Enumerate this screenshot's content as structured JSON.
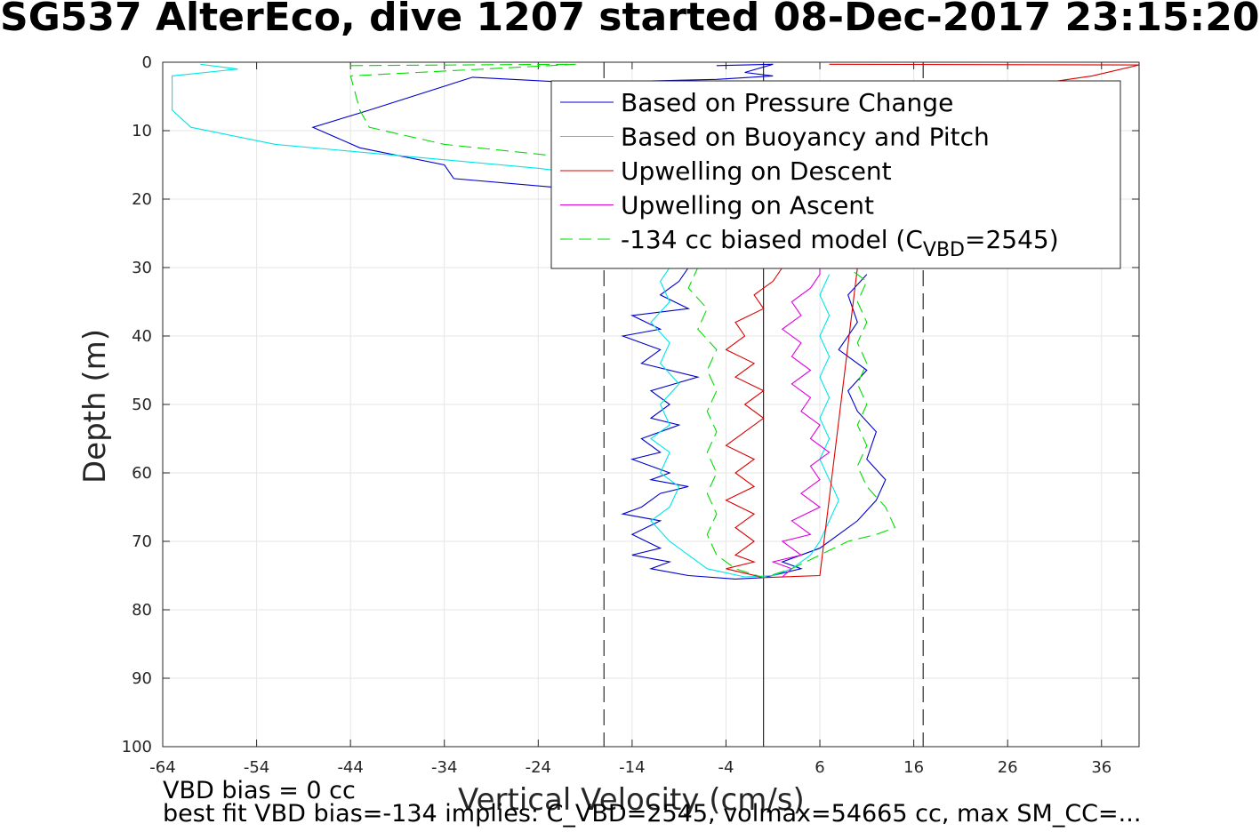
{
  "title": "SG537 AlterEco, dive 1207 started 08-Dec-2017 23:15:20",
  "notes": {
    "vbd_bias": "VBD bias = 0 cc",
    "best_fit": "best fit VBD bias=-134 implies: C_VBD=2545, volmax=54665 cc, max SM_CC=..."
  },
  "chart_data": {
    "type": "line",
    "xlabel": "Vertical Velocity (cm/s)",
    "ylabel": "Depth (m)",
    "xlim": [
      -64,
      40
    ],
    "ylim": [
      0,
      100
    ],
    "y_reversed": true,
    "grid": true,
    "xticks": [
      -64,
      -54,
      -44,
      -34,
      -24,
      -14,
      -4,
      6,
      16,
      26,
      36
    ],
    "yticks": [
      0,
      10,
      20,
      30,
      40,
      50,
      60,
      70,
      80,
      90,
      100
    ],
    "legend_position": "top-right",
    "vlines": [
      {
        "x": 0,
        "style": "solid"
      },
      {
        "x": -17,
        "style": "dashed"
      },
      {
        "x": 17,
        "style": "dashed"
      }
    ],
    "series": [
      {
        "name": "Based on Pressure Change",
        "color": "#0000cc",
        "style": "solid",
        "points": [
          [
            -5,
            0.5
          ],
          [
            1,
            0.3
          ],
          [
            -2,
            1.5
          ],
          [
            1,
            2
          ],
          [
            -5,
            2.5
          ],
          [
            -20,
            3
          ],
          [
            -31,
            2.2
          ],
          [
            -42,
            7
          ],
          [
            -48,
            9.5
          ],
          [
            -43,
            12.5
          ],
          [
            -34,
            15
          ],
          [
            -33,
            17
          ],
          [
            -22,
            18.3
          ],
          [
            -16,
            19.5
          ],
          [
            -11,
            21
          ],
          [
            -9,
            25
          ],
          [
            -8,
            30
          ],
          [
            -9,
            32
          ],
          [
            -11,
            34
          ],
          [
            -8,
            36
          ],
          [
            -14,
            37
          ],
          [
            -11,
            39
          ],
          [
            -15,
            40
          ],
          [
            -11,
            42
          ],
          [
            -13,
            44
          ],
          [
            -7,
            46
          ],
          [
            -12,
            48
          ],
          [
            -10,
            50
          ],
          [
            -12,
            52
          ],
          [
            -9,
            53
          ],
          [
            -13,
            55
          ],
          [
            -11,
            57
          ],
          [
            -14,
            58
          ],
          [
            -10,
            60
          ],
          [
            -12,
            61
          ],
          [
            -8,
            62
          ],
          [
            -11,
            63
          ],
          [
            -13,
            65
          ],
          [
            -15,
            66
          ],
          [
            -11,
            67
          ],
          [
            -14,
            69
          ],
          [
            -11,
            71
          ],
          [
            -14,
            72
          ],
          [
            -10,
            73
          ],
          [
            -12,
            74
          ],
          [
            -8,
            75
          ],
          [
            -3,
            75.5
          ],
          [
            0,
            75.3
          ],
          [
            4,
            74
          ],
          [
            2,
            73
          ],
          [
            6,
            71
          ],
          [
            8,
            69
          ],
          [
            10,
            67
          ],
          [
            12,
            64
          ],
          [
            13,
            61
          ],
          [
            11,
            58
          ],
          [
            12,
            54
          ],
          [
            10,
            51
          ],
          [
            9,
            48
          ],
          [
            11,
            45
          ],
          [
            8,
            42
          ],
          [
            10,
            38
          ],
          [
            9,
            34
          ],
          [
            11,
            31
          ]
        ]
      },
      {
        "name": "Based on Buoyancy and Pitch",
        "color": "#00e5e5",
        "style": "solid",
        "points": [
          [
            -60,
            0.3
          ],
          [
            -56,
            1
          ],
          [
            -63,
            2
          ],
          [
            -63,
            7
          ],
          [
            -61,
            9.5
          ],
          [
            -52,
            12
          ],
          [
            -36,
            14
          ],
          [
            -24,
            15.5
          ],
          [
            -15,
            17
          ],
          [
            -10,
            20
          ],
          [
            -9,
            25
          ],
          [
            -10,
            30
          ],
          [
            -11,
            32
          ],
          [
            -10,
            35
          ],
          [
            -12,
            38
          ],
          [
            -10,
            41
          ],
          [
            -11,
            44
          ],
          [
            -9,
            47
          ],
          [
            -11,
            50
          ],
          [
            -10,
            53
          ],
          [
            -12,
            55
          ],
          [
            -10,
            57
          ],
          [
            -11,
            60
          ],
          [
            -9,
            62
          ],
          [
            -10,
            65
          ],
          [
            -12,
            67
          ],
          [
            -10,
            70
          ],
          [
            -8,
            72
          ],
          [
            -6,
            74
          ],
          [
            -2,
            75.2
          ],
          [
            1,
            75
          ],
          [
            3,
            74
          ],
          [
            5,
            72
          ],
          [
            6,
            70
          ],
          [
            7,
            67
          ],
          [
            8,
            64
          ],
          [
            7,
            61
          ],
          [
            6,
            58
          ],
          [
            7,
            55
          ],
          [
            6,
            52
          ],
          [
            7,
            49
          ],
          [
            6,
            46
          ],
          [
            7,
            43
          ],
          [
            6,
            40
          ],
          [
            7,
            37
          ],
          [
            6,
            34
          ],
          [
            7,
            31
          ]
        ]
      },
      {
        "name": "Upwelling on Descent",
        "color": "#dd0000",
        "style": "solid",
        "points": [
          [
            7,
            0.3
          ],
          [
            40,
            0.4
          ],
          [
            35,
            2
          ],
          [
            30,
            3
          ],
          [
            20,
            4
          ],
          [
            12,
            5
          ],
          [
            8,
            5.5
          ],
          [
            10,
            30
          ],
          [
            6,
            75
          ],
          [
            0,
            75.3
          ],
          [
            -4,
            74
          ],
          [
            -1,
            73
          ],
          [
            -3,
            72
          ],
          [
            -1,
            70
          ],
          [
            -3,
            68
          ],
          [
            -1,
            66
          ],
          [
            -4,
            64
          ],
          [
            -1,
            62
          ],
          [
            -3,
            60
          ],
          [
            -1,
            58
          ],
          [
            -4,
            56
          ],
          [
            -2,
            54
          ],
          [
            0,
            52
          ],
          [
            -2,
            50
          ],
          [
            0,
            48
          ],
          [
            -3,
            46
          ],
          [
            -1,
            44
          ],
          [
            -4,
            42
          ],
          [
            -2,
            40
          ],
          [
            -3,
            38
          ],
          [
            0,
            36
          ],
          [
            -1,
            34
          ],
          [
            1,
            32
          ],
          [
            2,
            30
          ]
        ]
      },
      {
        "name": "Upwelling on Ascent",
        "color": "#e000e0",
        "style": "solid",
        "points": [
          [
            2,
            75.2
          ],
          [
            3,
            74
          ],
          [
            1,
            73
          ],
          [
            4,
            72
          ],
          [
            2,
            70
          ],
          [
            5,
            69
          ],
          [
            3,
            67
          ],
          [
            6,
            65
          ],
          [
            4,
            63
          ],
          [
            6,
            61
          ],
          [
            5,
            59
          ],
          [
            7,
            57
          ],
          [
            5,
            55
          ],
          [
            6,
            53
          ],
          [
            4,
            51
          ],
          [
            5,
            49
          ],
          [
            3,
            47
          ],
          [
            5,
            45
          ],
          [
            3,
            43
          ],
          [
            4,
            41
          ],
          [
            2,
            39
          ],
          [
            4,
            37
          ],
          [
            3,
            35
          ],
          [
            5,
            33
          ],
          [
            6,
            31
          ],
          [
            6,
            30
          ]
        ]
      },
      {
        "name": "-134 cc biased model (CVBD=2545)",
        "legend_main": "-134 cc biased model (C",
        "legend_sub": "VBD",
        "legend_tail": "=2545)",
        "color": "#00dd00",
        "style": "dashed",
        "points": [
          [
            -44,
            0.5
          ],
          [
            -20,
            0.3
          ],
          [
            -44,
            2
          ],
          [
            -43,
            7
          ],
          [
            -42,
            9.5
          ],
          [
            -34,
            12
          ],
          [
            -20,
            14
          ],
          [
            -12,
            17
          ],
          [
            -8,
            22
          ],
          [
            -7,
            28
          ],
          [
            -7,
            30
          ],
          [
            -8,
            33
          ],
          [
            -6,
            36
          ],
          [
            -7,
            39
          ],
          [
            -5,
            42
          ],
          [
            -6,
            45
          ],
          [
            -5,
            48
          ],
          [
            -6,
            51
          ],
          [
            -5,
            54
          ],
          [
            -6,
            57
          ],
          [
            -5,
            60
          ],
          [
            -6,
            63
          ],
          [
            -5,
            66
          ],
          [
            -6,
            69
          ],
          [
            -5,
            72
          ],
          [
            -3,
            74
          ],
          [
            0,
            75.3
          ],
          [
            3,
            74
          ],
          [
            6,
            72
          ],
          [
            9,
            70
          ],
          [
            12,
            69
          ],
          [
            14,
            68
          ],
          [
            13,
            65
          ],
          [
            11,
            62
          ],
          [
            10,
            59
          ],
          [
            11,
            56
          ],
          [
            10,
            53
          ],
          [
            11,
            50
          ],
          [
            10,
            47
          ],
          [
            11,
            44
          ],
          [
            10,
            41
          ],
          [
            11,
            38
          ],
          [
            10,
            35
          ],
          [
            11,
            32
          ],
          [
            9,
            30
          ]
        ]
      }
    ]
  }
}
